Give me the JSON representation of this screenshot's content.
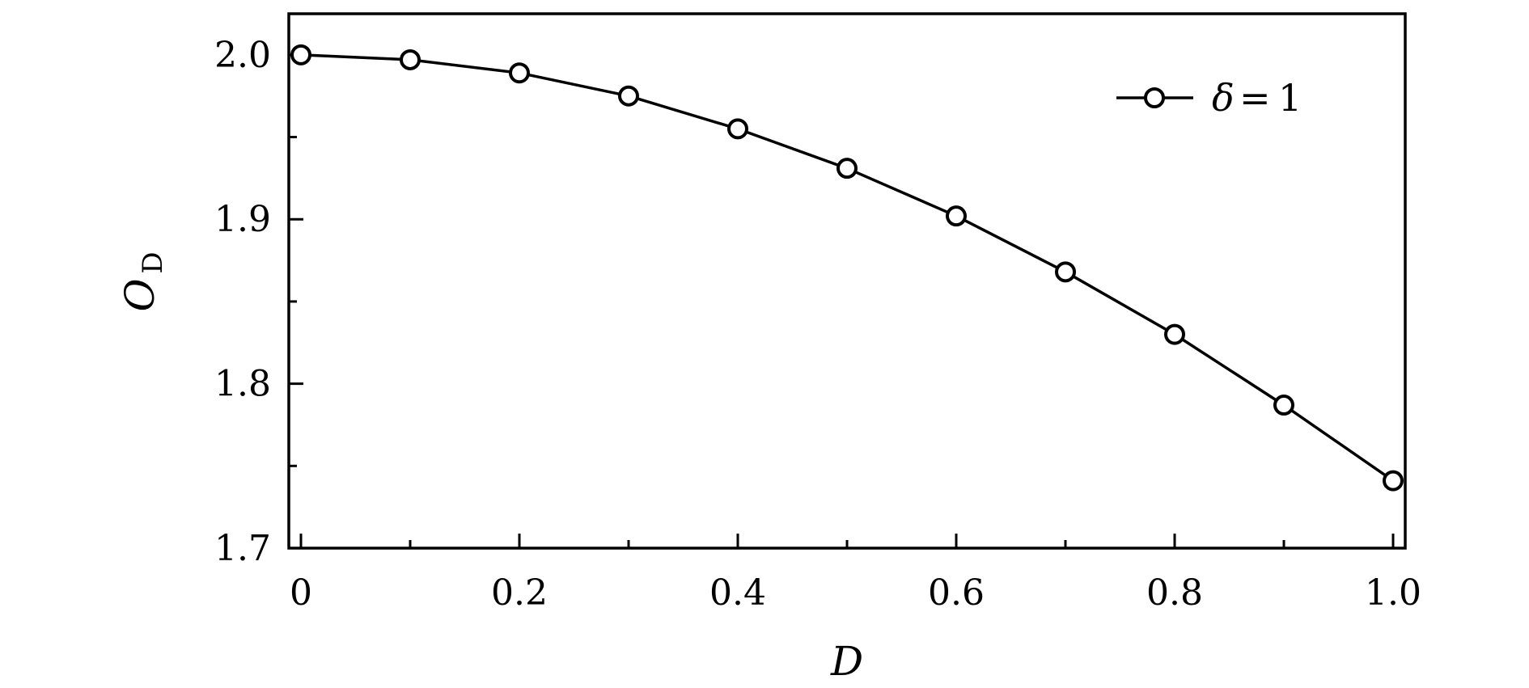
{
  "chart_data": {
    "type": "line",
    "xlabel": "D",
    "ylabel": "O",
    "ylabel_subscript": "D",
    "xlim": [
      0,
      1.0
    ],
    "ylim": [
      1.7,
      2.025
    ],
    "x_ticks": [
      0,
      0.2,
      0.4,
      0.6,
      0.8,
      1.0
    ],
    "x_tick_labels": [
      "0",
      "0.2",
      "0.4",
      "0.6",
      "0.8",
      "1.0"
    ],
    "x_minor_ticks": [
      0.1,
      0.3,
      0.5,
      0.7,
      0.9
    ],
    "y_ticks": [
      1.7,
      1.8,
      1.9,
      2.0
    ],
    "y_tick_labels": [
      "1.7",
      "1.8",
      "1.9",
      "2.0"
    ],
    "y_minor_ticks": [
      1.75,
      1.85,
      1.95
    ],
    "grid": false,
    "legend_position": "top-right",
    "legend_symbol": "δ",
    "legend_equals": "=",
    "legend_value": "1",
    "marker": "open-circle",
    "line_color": "#000000",
    "series": [
      {
        "x": [
          0,
          0.1,
          0.2,
          0.3,
          0.4,
          0.5,
          0.6,
          0.7,
          0.8,
          0.9,
          1.0
        ],
        "values": [
          2.0,
          1.997,
          1.989,
          1.975,
          1.955,
          1.931,
          1.902,
          1.868,
          1.83,
          1.787,
          1.741
        ]
      }
    ]
  }
}
